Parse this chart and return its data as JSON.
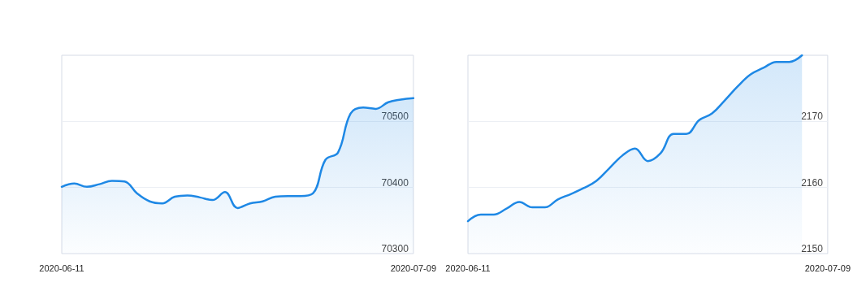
{
  "chart_data": [
    {
      "type": "area",
      "x": [
        "2020-06-11",
        "2020-06-12",
        "2020-06-13",
        "2020-06-14",
        "2020-06-15",
        "2020-06-16",
        "2020-06-17",
        "2020-06-18",
        "2020-06-19",
        "2020-06-20",
        "2020-06-21",
        "2020-06-22",
        "2020-06-23",
        "2020-06-24",
        "2020-06-25",
        "2020-06-26",
        "2020-06-27",
        "2020-06-28",
        "2020-06-29",
        "2020-06-30",
        "2020-07-01",
        "2020-07-02",
        "2020-07-03",
        "2020-07-04",
        "2020-07-05",
        "2020-07-06",
        "2020-07-07",
        "2020-07-08",
        "2020-07-09"
      ],
      "values": [
        70401,
        70406,
        70401,
        70405,
        70410,
        70409,
        70391,
        70379,
        70376,
        70386,
        70388,
        70385,
        70381,
        70393,
        70369,
        70376,
        70379,
        70386,
        70387,
        70387,
        70391,
        70442,
        70453,
        70512,
        70521,
        70519,
        70529,
        70533,
        70535
      ],
      "color": "#1e88e5",
      "xlim": [
        "2020-06-11",
        "2020-07-09"
      ],
      "xticks": [
        "2020-06-11",
        "2020-07-09"
      ],
      "ylim": [
        70300,
        70600
      ],
      "yticks": [
        70300,
        70400,
        70500
      ],
      "grid": "y"
    },
    {
      "type": "area",
      "x": [
        "2020-06-11",
        "2020-06-12",
        "2020-06-13",
        "2020-06-14",
        "2020-06-15",
        "2020-06-16",
        "2020-06-17",
        "2020-06-18",
        "2020-06-19",
        "2020-06-20",
        "2020-06-21",
        "2020-06-22",
        "2020-06-23",
        "2020-06-24",
        "2020-06-25",
        "2020-06-26",
        "2020-06-27",
        "2020-06-28",
        "2020-06-29",
        "2020-06-30",
        "2020-07-01",
        "2020-07-02",
        "2020-07-03",
        "2020-07-04",
        "2020-07-05",
        "2020-07-06",
        "2020-07-07"
      ],
      "values": [
        2154.9,
        2155.9,
        2155.9,
        2156.8,
        2157.8,
        2157.0,
        2157.0,
        2158.2,
        2159.0,
        2159.9,
        2161.0,
        2162.9,
        2164.8,
        2165.9,
        2164.0,
        2165.2,
        2168.1,
        2168.1,
        2170.2,
        2171.2,
        2173.2,
        2175.3,
        2177.1,
        2178.1,
        2179.0,
        2179.0,
        2180
      ],
      "color": "#1e88e5",
      "xlim": [
        "2020-06-11",
        "2020-07-09"
      ],
      "xticks": [
        "2020-06-11",
        "2020-07-09"
      ],
      "ylim": [
        2150,
        2180
      ],
      "yticks": [
        2150,
        2160,
        2170
      ],
      "grid": "y"
    }
  ]
}
